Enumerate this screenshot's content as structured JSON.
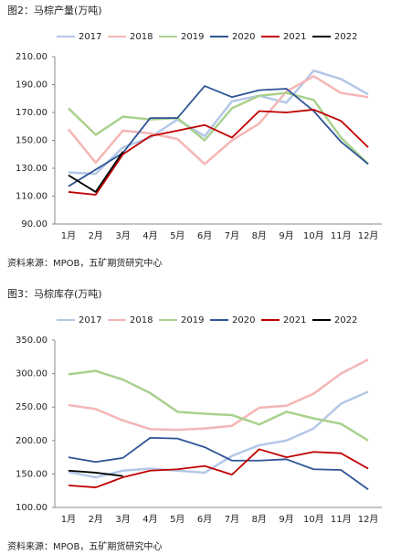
{
  "chart_data": [
    {
      "type": "line",
      "title": "图2：马棕产量(万吨)",
      "source": "资料来源：MPOB，五矿期货研究中心",
      "categories": [
        "1月",
        "2月",
        "3月",
        "4月",
        "5月",
        "6月",
        "7月",
        "8月",
        "9月",
        "10月",
        "11月",
        "12月"
      ],
      "ylim": [
        90,
        210
      ],
      "yticks": [
        {
          "value": 90,
          "label": "90.00"
        },
        {
          "value": 110,
          "label": "110.00"
        },
        {
          "value": 130,
          "label": "130.00"
        },
        {
          "value": 150,
          "label": "150.00"
        },
        {
          "value": 170,
          "label": "170.00"
        },
        {
          "value": 190,
          "label": "190.00"
        },
        {
          "value": 210,
          "label": "210.00"
        }
      ],
      "grid": false,
      "legend": "top",
      "series": [
        {
          "name": "2017",
          "color": "#b4c7e7",
          "values": [
            127,
            126,
            145,
            152,
            165,
            153,
            178,
            182,
            177,
            200,
            194,
            183
          ]
        },
        {
          "name": "2018",
          "color": "#f4b6b6",
          "values": [
            158,
            134,
            157,
            155,
            151,
            133,
            150,
            162,
            185,
            196,
            184,
            181
          ]
        },
        {
          "name": "2019",
          "color": "#a9d18e",
          "values": [
            173,
            154,
            167,
            165,
            166,
            150,
            173,
            182,
            184,
            179,
            152,
            133
          ]
        },
        {
          "name": "2020",
          "color": "#2f5597",
          "values": [
            117,
            129,
            141,
            166,
            166,
            189,
            181,
            186,
            187,
            171,
            149,
            133
          ]
        },
        {
          "name": "2021",
          "color": "#c00000",
          "values": [
            113,
            111,
            140,
            153,
            157,
            161,
            152,
            171,
            170,
            172,
            164,
            145
          ]
        },
        {
          "name": "2022",
          "color": "#000000",
          "values": [
            125,
            113,
            142,
            null,
            null,
            null,
            null,
            null,
            null,
            null,
            null,
            null
          ]
        }
      ]
    },
    {
      "type": "line",
      "title": "图3：马棕库存(万吨)",
      "source": "资料来源：MPOB，五矿期货研究中心",
      "categories": [
        "1月",
        "2月",
        "3月",
        "4月",
        "5月",
        "6月",
        "7月",
        "8月",
        "9月",
        "10月",
        "11月",
        "12月"
      ],
      "ylim": [
        100,
        350
      ],
      "yticks": [
        {
          "value": 100,
          "label": "100.00"
        },
        {
          "value": 150,
          "label": "150.00"
        },
        {
          "value": 200,
          "label": "200.00"
        },
        {
          "value": 250,
          "label": "250.00"
        },
        {
          "value": 300,
          "label": "300.00"
        },
        {
          "value": 350,
          "label": "350.00"
        }
      ],
      "grid": false,
      "legend": "top",
      "series": [
        {
          "name": "2017",
          "color": "#b4c7e7",
          "values": [
            153,
            145,
            155,
            158,
            155,
            152,
            177,
            193,
            200,
            218,
            255,
            273
          ]
        },
        {
          "name": "2018",
          "color": "#f4b6b6",
          "values": [
            253,
            247,
            230,
            217,
            216,
            218,
            222,
            249,
            252,
            270,
            300,
            321
          ]
        },
        {
          "name": "2019",
          "color": "#a9d18e",
          "values": [
            299,
            304,
            291,
            271,
            243,
            240,
            238,
            224,
            243,
            233,
            225,
            200
          ]
        },
        {
          "name": "2020",
          "color": "#2f5597",
          "values": [
            175,
            168,
            174,
            204,
            203,
            190,
            170,
            170,
            172,
            157,
            156,
            127
          ]
        },
        {
          "name": "2021",
          "color": "#c00000",
          "values": [
            133,
            130,
            145,
            155,
            157,
            162,
            149,
            187,
            175,
            183,
            181,
            158
          ]
        },
        {
          "name": "2022",
          "color": "#000000",
          "values": [
            155,
            152,
            147,
            null,
            null,
            null,
            null,
            null,
            null,
            null,
            null,
            null
          ]
        }
      ]
    }
  ]
}
